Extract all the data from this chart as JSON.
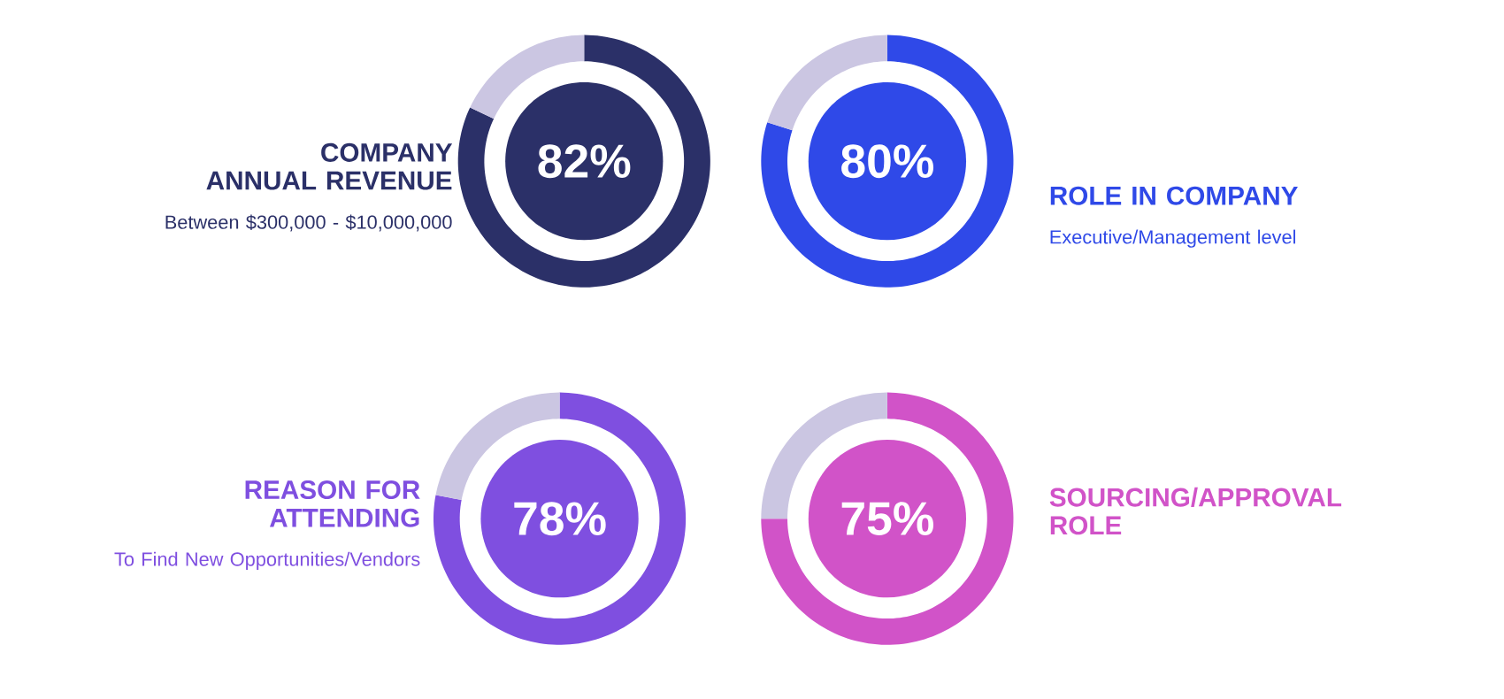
{
  "chart_data": [
    {
      "type": "donut",
      "title": "COMPANY ANNUAL REVENUE",
      "subtitle": "Between $300,000 - $10,000,000",
      "categories": [
        null,
        null
      ],
      "values": [
        82,
        18
      ],
      "colors": [
        "#2b3068",
        "#cbc6e2"
      ],
      "value_labels": [
        "82%",
        null
      ]
    },
    {
      "type": "donut",
      "title": "ROLE IN COMPANY",
      "subtitle": "Executive/Management level",
      "categories": [
        null,
        null
      ],
      "values": [
        80,
        20
      ],
      "colors": [
        "#2f49e8",
        "#cbc6e2"
      ],
      "value_labels": [
        "80%",
        null
      ]
    },
    {
      "type": "donut",
      "title": "REASON FOR ATTENDING",
      "subtitle": "To Find New Opportunities/Vendors",
      "categories": [
        null,
        null
      ],
      "values": [
        78,
        22
      ],
      "colors": [
        "#7f4fe0",
        "#cbc6e2"
      ],
      "value_labels": [
        "78%",
        null
      ]
    },
    {
      "type": "donut",
      "title": "SOURCING/APPROVAL ROLE",
      "categories": [
        null,
        null
      ],
      "values": [
        75,
        25
      ],
      "colors": [
        "#d153c8",
        "#cbc6e2"
      ],
      "value_labels": [
        "75%",
        null
      ]
    }
  ]
}
